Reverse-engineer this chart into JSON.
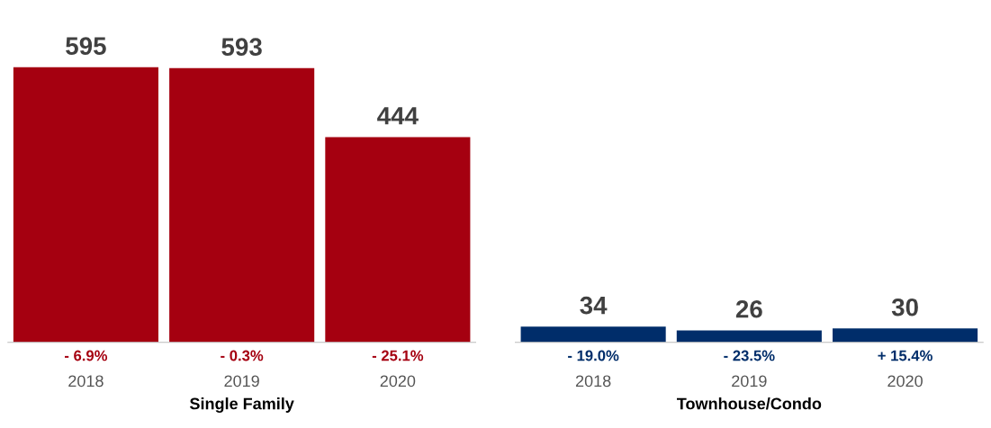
{
  "chart_data": [
    {
      "type": "bar",
      "xlabel": "Single Family",
      "categories": [
        "2018",
        "2019",
        "2020"
      ],
      "values": [
        595,
        593,
        444
      ],
      "color": "#a50010",
      "data_labels": true,
      "grid": false,
      "legend": false,
      "annotations": [
        "- 6.9%",
        "- 0.3%",
        "- 25.1%"
      ]
    },
    {
      "type": "bar",
      "xlabel": "Townhouse/Condo",
      "categories": [
        "2018",
        "2019",
        "2020"
      ],
      "values": [
        34,
        26,
        30
      ],
      "color": "#002d6a",
      "data_labels": true,
      "grid": false,
      "legend": false,
      "annotations": [
        "- 19.0%",
        "- 23.5%",
        "+ 15.4%"
      ]
    }
  ]
}
